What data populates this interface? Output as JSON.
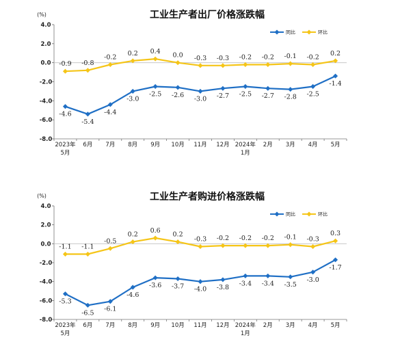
{
  "chart_data": [
    {
      "type": "line",
      "title": "工业生产者出厂价格涨跌幅",
      "unit_label": "(%)",
      "categories": [
        [
          "2023年",
          "5月"
        ],
        [
          "6月"
        ],
        [
          "7月"
        ],
        [
          "8月"
        ],
        [
          "9月"
        ],
        [
          "10月"
        ],
        [
          "11月"
        ],
        [
          "12月"
        ],
        [
          "2024年",
          "1月"
        ],
        [
          "2月"
        ],
        [
          "3月"
        ],
        [
          "4月"
        ],
        [
          "5月"
        ]
      ],
      "yticks": [
        "4.0",
        "2.0",
        "0.0",
        "-2.0",
        "-4.0",
        "-6.0",
        "-8.0"
      ],
      "ylim": [
        -8,
        4
      ],
      "grid": false,
      "legend": "top-right",
      "series": [
        {
          "name": "同比",
          "color": "#1f6fc5",
          "values": [
            -4.6,
            -5.4,
            -4.4,
            -3.0,
            -2.5,
            -2.6,
            -3.0,
            -2.7,
            -2.5,
            -2.7,
            -2.8,
            -2.5,
            -1.4
          ],
          "labels": [
            "-4.6",
            "-5.4",
            "-4.4",
            "-3.0",
            "-2.5",
            "-2.6",
            "-3.0",
            "-2.7",
            "-2.5",
            "-2.7",
            "-2.8",
            "-2.5",
            "-1.4"
          ]
        },
        {
          "name": "环比",
          "color": "#f5c518",
          "values": [
            -0.9,
            -0.8,
            -0.2,
            0.2,
            0.4,
            0.0,
            -0.3,
            -0.3,
            -0.2,
            -0.2,
            -0.1,
            -0.2,
            0.2
          ],
          "labels": [
            "-0.9",
            "-0.8",
            "-0.2",
            "0.2",
            "0.4",
            "0.0",
            "-0.3",
            "-0.3",
            "-0.2",
            "-0.2",
            "-0.1",
            "-0.2",
            "0.2"
          ]
        }
      ]
    },
    {
      "type": "line",
      "title": "工业生产者购进价格涨跌幅",
      "unit_label": "(%)",
      "categories": [
        [
          "2023年",
          "5月"
        ],
        [
          "6月"
        ],
        [
          "7月"
        ],
        [
          "8月"
        ],
        [
          "9月"
        ],
        [
          "10月"
        ],
        [
          "11月"
        ],
        [
          "12月"
        ],
        [
          "2024年",
          "1月"
        ],
        [
          "2月"
        ],
        [
          "3月"
        ],
        [
          "4月"
        ],
        [
          "5月"
        ]
      ],
      "yticks": [
        "4.0",
        "2.0",
        "0.0",
        "-2.0",
        "-4.0",
        "-6.0",
        "-8.0"
      ],
      "ylim": [
        -8,
        4
      ],
      "grid": false,
      "legend": "top-right",
      "series": [
        {
          "name": "同比",
          "color": "#1f6fc5",
          "values": [
            -5.3,
            -6.5,
            -6.1,
            -4.6,
            -3.6,
            -3.7,
            -4.0,
            -3.8,
            -3.4,
            -3.4,
            -3.5,
            -3.0,
            -1.7
          ],
          "labels": [
            "-5.3",
            "-6.5",
            "-6.1",
            "-4.6",
            "-3.6",
            "-3.7",
            "-4.0",
            "-3.8",
            "-3.4",
            "-3.4",
            "-3.5",
            "-3.0",
            "-1.7"
          ]
        },
        {
          "name": "环比",
          "color": "#f5c518",
          "values": [
            -1.1,
            -1.1,
            -0.5,
            0.2,
            0.6,
            0.2,
            -0.3,
            -0.2,
            -0.2,
            -0.2,
            -0.1,
            -0.3,
            0.3
          ],
          "labels": [
            "-1.1",
            "-1.1",
            "-0.5",
            "0.2",
            "0.6",
            "0.2",
            "-0.3",
            "-0.2",
            "-0.2",
            "-0.2",
            "-0.1",
            "-0.3",
            "0.3"
          ]
        }
      ]
    }
  ]
}
